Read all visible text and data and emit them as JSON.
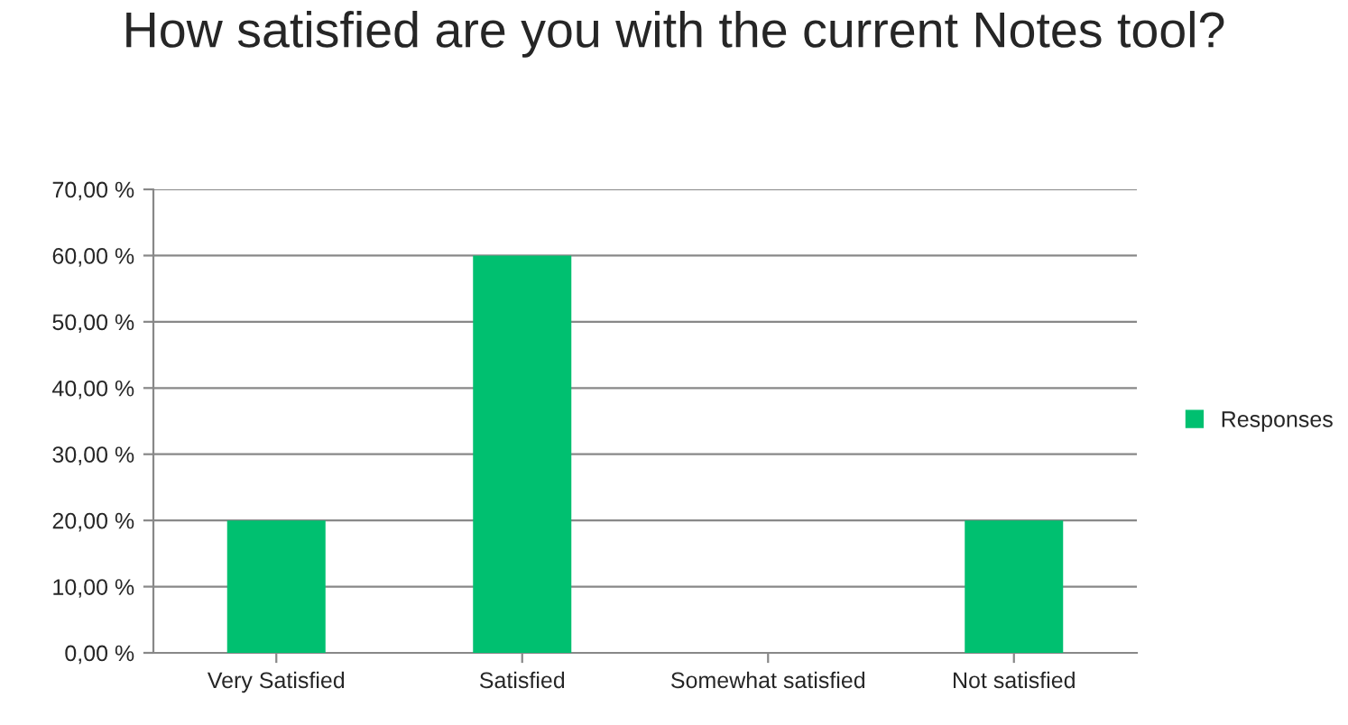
{
  "chart_data": {
    "type": "bar",
    "title": "How satisfied are you with the current Notes tool?",
    "categories": [
      "Very Satisfied",
      "Satisfied",
      "Somewhat satisfied",
      "Not satisfied"
    ],
    "series": [
      {
        "name": "Responses",
        "color": "#00c070",
        "values": [
          20,
          60,
          0,
          20
        ]
      }
    ],
    "ylim": [
      0,
      70
    ],
    "yticks": [
      {
        "value": 0,
        "label": "0,00 %"
      },
      {
        "value": 10,
        "label": "10,00 %"
      },
      {
        "value": 20,
        "label": "20,00 %"
      },
      {
        "value": 30,
        "label": "30,00 %"
      },
      {
        "value": 40,
        "label": "40,00 %"
      },
      {
        "value": 50,
        "label": "50,00 %"
      },
      {
        "value": 60,
        "label": "60,00 %"
      },
      {
        "value": 70,
        "label": "70,00 %"
      }
    ],
    "grid": "y",
    "legend": "right"
  }
}
